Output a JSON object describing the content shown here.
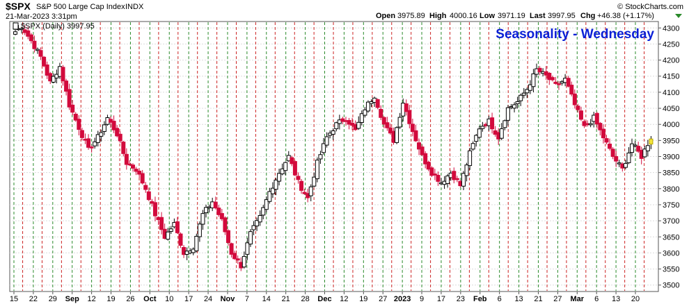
{
  "header": {
    "symbol": "$SPX",
    "name": "S&P 500 Large Cap Index",
    "exchange": "INDX",
    "datetime": "21-Mar-2023 3:31pm",
    "open_label": "Open",
    "open": "3975.89",
    "high_label": "High",
    "high": "4000.16",
    "low_label": "Low",
    "low": "3971.19",
    "last_label": "Last",
    "last": "3997.95",
    "chg_label": "Chg",
    "chg": "+46.38 (+1.17%)",
    "copyright": "© StockCharts.com"
  },
  "legend": {
    "label": "$SPX (Daily) 3997.95"
  },
  "chart_data": {
    "type": "ohlc",
    "title": "Seasonality - Wednesday",
    "ylim": [
      3480,
      4320
    ],
    "yticks": [
      3500,
      3550,
      3600,
      3650,
      3700,
      3750,
      3800,
      3850,
      3900,
      3950,
      4000,
      4050,
      4100,
      4150,
      4200,
      4250,
      4300
    ],
    "x_labels": [
      {
        "label": "15",
        "bold": false
      },
      {
        "label": "22",
        "bold": false
      },
      {
        "label": "29",
        "bold": false
      },
      {
        "label": "Sep",
        "bold": true
      },
      {
        "label": "12",
        "bold": false
      },
      {
        "label": "19",
        "bold": false
      },
      {
        "label": "26",
        "bold": false
      },
      {
        "label": "Oct",
        "bold": true
      },
      {
        "label": "10",
        "bold": false
      },
      {
        "label": "17",
        "bold": false
      },
      {
        "label": "24",
        "bold": false
      },
      {
        "label": "Nov",
        "bold": true
      },
      {
        "label": "7",
        "bold": false
      },
      {
        "label": "14",
        "bold": false
      },
      {
        "label": "21",
        "bold": false
      },
      {
        "label": "28",
        "bold": false
      },
      {
        "label": "Dec",
        "bold": true
      },
      {
        "label": "12",
        "bold": false
      },
      {
        "label": "19",
        "bold": false
      },
      {
        "label": "27",
        "bold": false
      },
      {
        "label": "2023",
        "bold": true
      },
      {
        "label": "9",
        "bold": false
      },
      {
        "label": "17",
        "bold": false
      },
      {
        "label": "23",
        "bold": false
      },
      {
        "label": "Feb",
        "bold": true
      },
      {
        "label": "6",
        "bold": false
      },
      {
        "label": "13",
        "bold": false
      },
      {
        "label": "21",
        "bold": false
      },
      {
        "label": "27",
        "bold": false
      },
      {
        "label": "Mar",
        "bold": true
      },
      {
        "label": "6",
        "bold": false
      },
      {
        "label": "13",
        "bold": false
      },
      {
        "label": "20",
        "bold": false
      }
    ],
    "anchors": [
      4280,
      4305,
      4260,
      4210,
      4130,
      4180,
      4060,
      3990,
      3920,
      3960,
      4020,
      3970,
      3880,
      3860,
      3800,
      3720,
      3650,
      3690,
      3600,
      3620,
      3720,
      3760,
      3700,
      3600,
      3560,
      3660,
      3710,
      3790,
      3850,
      3900,
      3820,
      3770,
      3880,
      3960,
      4000,
      4020,
      3980,
      4050,
      4090,
      4000,
      3950,
      4070,
      3980,
      3900,
      3850,
      3820,
      3850,
      3810,
      3910,
      3990,
      4010,
      3960,
      4050,
      4070,
      4110,
      4170,
      4150,
      4120,
      4140,
      4060,
      3990,
      4020,
      3960,
      3900,
      3860,
      3940,
      3900,
      3960
    ],
    "series_color_up": "#000000",
    "series_color_down": "#d20a3c",
    "last_bar_color": "#f3e53a",
    "wednesday_line_color": "#cc2222",
    "monday_line_color": "#2a8a2a"
  }
}
